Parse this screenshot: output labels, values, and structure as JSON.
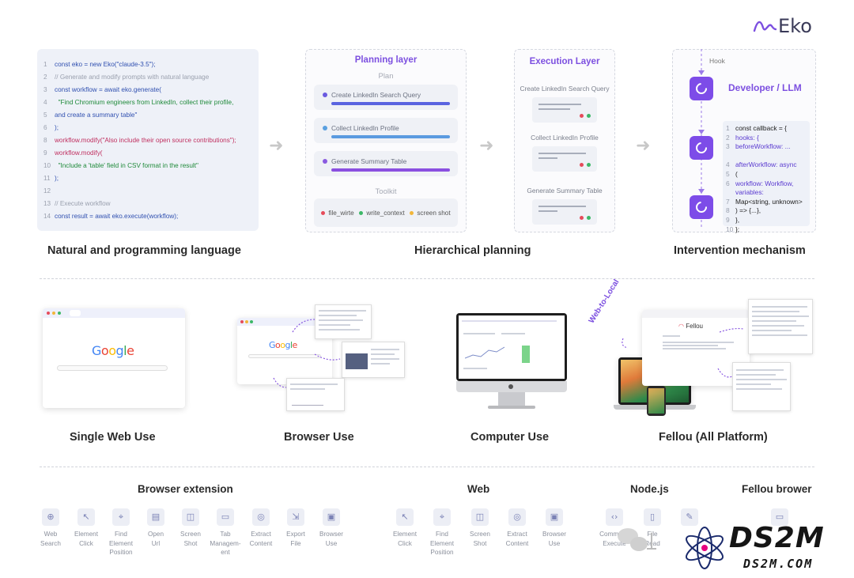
{
  "brand": {
    "name": "Eko"
  },
  "code_panel": {
    "lines": [
      {
        "n": "1",
        "t": "const eko = new Eko(\"claude-3.5\");"
      },
      {
        "n": "2",
        "t": "// Generate and modify prompts with natural language"
      },
      {
        "n": "3",
        "t": "const workflow = await eko.generate("
      },
      {
        "n": "4",
        "t": "  \"Find Chromium engineers from LinkedIn, collect their profile,"
      },
      {
        "n": "5",
        "t": "and create a summary table\""
      },
      {
        "n": "6",
        "t": ");"
      },
      {
        "n": "8",
        "t": "workflow.modify(\"Also include their open source contributions\");"
      },
      {
        "n": "9",
        "t": "workflow.modify("
      },
      {
        "n": "10",
        "t": "  \"Include a 'table' field in CSV format in the result\""
      },
      {
        "n": "11",
        "t": ");"
      },
      {
        "n": "12",
        "t": ""
      },
      {
        "n": "13",
        "t": "// Execute workflow"
      },
      {
        "n": "14",
        "t": "const result = await eko.execute(workflow);"
      }
    ]
  },
  "planning": {
    "title": "Planning layer",
    "plan_label": "Plan",
    "items": [
      "Create LinkedIn Search Query",
      "Collect LinkedIn Profile",
      "Generate Summary Table"
    ],
    "toolkit_label": "Toolkit",
    "tools": [
      "file_wirte",
      "write_context",
      "screen shot"
    ]
  },
  "execution": {
    "title": "Execution Layer",
    "items": [
      "Create LinkedIn Search Query",
      "Collect LinkedIn Profile",
      "Generate Summary Table"
    ]
  },
  "intervention": {
    "hook_label": "Hook",
    "dev_title": "Developer / LLM",
    "code": [
      {
        "n": "1",
        "t": "const callback = {"
      },
      {
        "n": "2",
        "t": " hooks: {"
      },
      {
        "n": "3",
        "t": "  beforeWorkflow: ..."
      },
      {
        "n": "",
        "t": ""
      },
      {
        "n": "4",
        "t": "  afterWorkflow: async"
      },
      {
        "n": "5",
        "t": "("
      },
      {
        "n": "6",
        "t": "   workflow: Workflow,"
      },
      {
        "n": "",
        "t": "   variables:"
      },
      {
        "n": "7",
        "t": "Map<string, unknown>"
      },
      {
        "n": "8",
        "t": "  ) => {...},"
      },
      {
        "n": "9",
        "t": " },"
      },
      {
        "n": "10",
        "t": "};"
      }
    ]
  },
  "section1_labels": [
    "Natural and programming language",
    "Hierarchical planning",
    "Intervention mechanism"
  ],
  "section2": {
    "labels": [
      "Single Web Use",
      "Browser Use",
      "Computer Use",
      "Fellou (All Platform)"
    ],
    "google_text": "Google",
    "fellou_text": "Fellou",
    "web_to_local": "Web-to-Local"
  },
  "section3": {
    "groups": [
      "Browser extension",
      "Web",
      "Node.js",
      "Fellou brower"
    ],
    "browser_extension_tools": [
      "Web\nSearch",
      "Element\nClick",
      "Find\nElement\nPosition",
      "Open\nUrl",
      "Screen\nShot",
      "Tab\nManagem-\nent",
      "Extract\nContent",
      "Export\nFile",
      "Browser\nUse"
    ],
    "web_tools": [
      "Element\nClick",
      "Find\nElement\nPosition",
      "Screen\nShot",
      "Extract\nContent",
      "Browser\nUse"
    ],
    "node_tools": [
      "Command\nExecute",
      "File\nRead",
      ""
    ],
    "fellou_tools": [
      ""
    ]
  },
  "watermark": {
    "big": "DS2M",
    "small": "DS2M.COM"
  },
  "colors": {
    "accent": "#7c4fe0",
    "red": "#e64b5a",
    "green": "#3cb867",
    "yellow": "#f2b63a"
  }
}
